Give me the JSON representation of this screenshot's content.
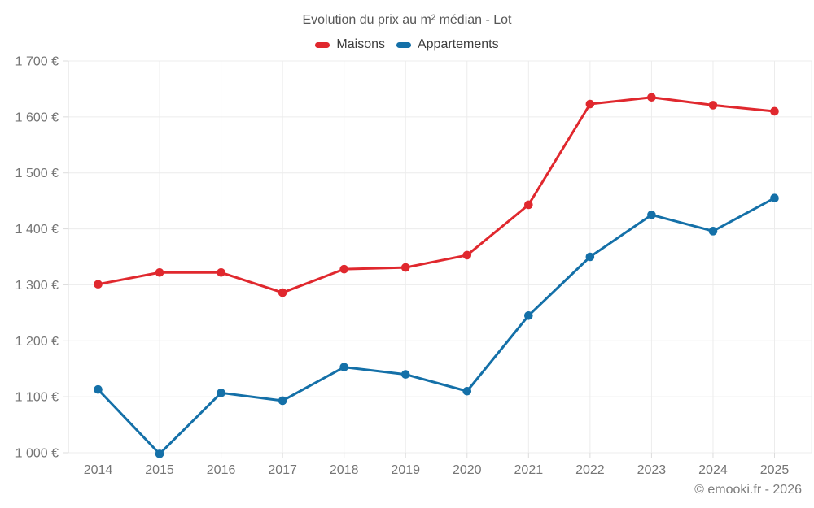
{
  "chart_data": {
    "type": "line",
    "title": "Evolution du prix au m² médian - Lot",
    "categories": [
      "2014",
      "2015",
      "2016",
      "2017",
      "2018",
      "2019",
      "2020",
      "2021",
      "2022",
      "2023",
      "2024",
      "2025"
    ],
    "series": [
      {
        "name": "Maisons",
        "color": "#e0282e",
        "values": [
          1301,
          1322,
          1322,
          1286,
          1328,
          1331,
          1353,
          1443,
          1623,
          1635,
          1621,
          1610
        ]
      },
      {
        "name": "Appartements",
        "color": "#1470a8",
        "values": [
          1113,
          998,
          1107,
          1093,
          1153,
          1140,
          1110,
          1245,
          1350,
          1425,
          1396,
          1455
        ]
      }
    ],
    "xlabel": "",
    "ylabel": "",
    "ylim": [
      1000,
      1700
    ],
    "ytick_step": 100,
    "ytick_labels": [
      "1 000 €",
      "1 100 €",
      "1 200 €",
      "1 300 €",
      "1 400 €",
      "1 500 €",
      "1 600 €",
      "1 700 €"
    ],
    "grid": true,
    "legend_position": "top",
    "colors": {
      "grid": "#ececec",
      "axis": "#dcdcdc",
      "tick_text": "#757575"
    }
  },
  "footer": {
    "copyright": "© emooki.fr - 2026"
  }
}
